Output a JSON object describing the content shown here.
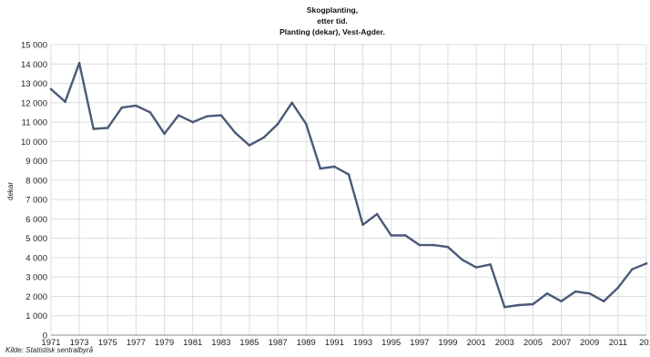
{
  "chart_data": {
    "type": "line",
    "title_lines": [
      "Skogplanting,",
      "etter tid.",
      "Planting (dekar), Vest-Agder."
    ],
    "xlabel": "",
    "ylabel": "dekar",
    "source": "Kilde: Statistisk sentralbyrå",
    "ylim": [
      0,
      15000
    ],
    "yticks": [
      "0",
      "1 000",
      "2 000",
      "3 000",
      "4 000",
      "5 000",
      "6 000",
      "7 000",
      "8 000",
      "9 000",
      "10 000",
      "11 000",
      "12 000",
      "13 000",
      "14 000",
      "15 000"
    ],
    "xticks": [
      "1971",
      "1973",
      "1975",
      "1977",
      "1979",
      "1981",
      "1983",
      "1985",
      "1987",
      "1989",
      "1991",
      "1993",
      "1995",
      "1997",
      "1999",
      "2001",
      "2003",
      "2005",
      "2007",
      "2009",
      "2011",
      "201"
    ],
    "grid": true,
    "line_color": "#4a5a78",
    "x": [
      1971,
      1972,
      1973,
      1974,
      1975,
      1976,
      1977,
      1978,
      1979,
      1980,
      1981,
      1982,
      1983,
      1984,
      1985,
      1986,
      1987,
      1988,
      1989,
      1990,
      1991,
      1992,
      1993,
      1994,
      1995,
      1996,
      1997,
      1998,
      1999,
      2000,
      2001,
      2002,
      2003,
      2004,
      2005,
      2006,
      2007,
      2008,
      2009,
      2010,
      2011,
      2012,
      2013
    ],
    "series": [
      {
        "values": [
          12700,
          12050,
          14050,
          10650,
          10700,
          11750,
          11850,
          11500,
          10400,
          11350,
          11000,
          11300,
          11350,
          10450,
          9800,
          10200,
          10900,
          12000,
          10900,
          8600,
          8700,
          8300,
          5700,
          6250,
          5150,
          5150,
          4650,
          4650,
          4550,
          3900,
          3500,
          3650,
          1450,
          1550,
          1600,
          2150,
          1750,
          2250,
          2150,
          1750,
          2450,
          3400,
          3700
        ]
      }
    ]
  }
}
